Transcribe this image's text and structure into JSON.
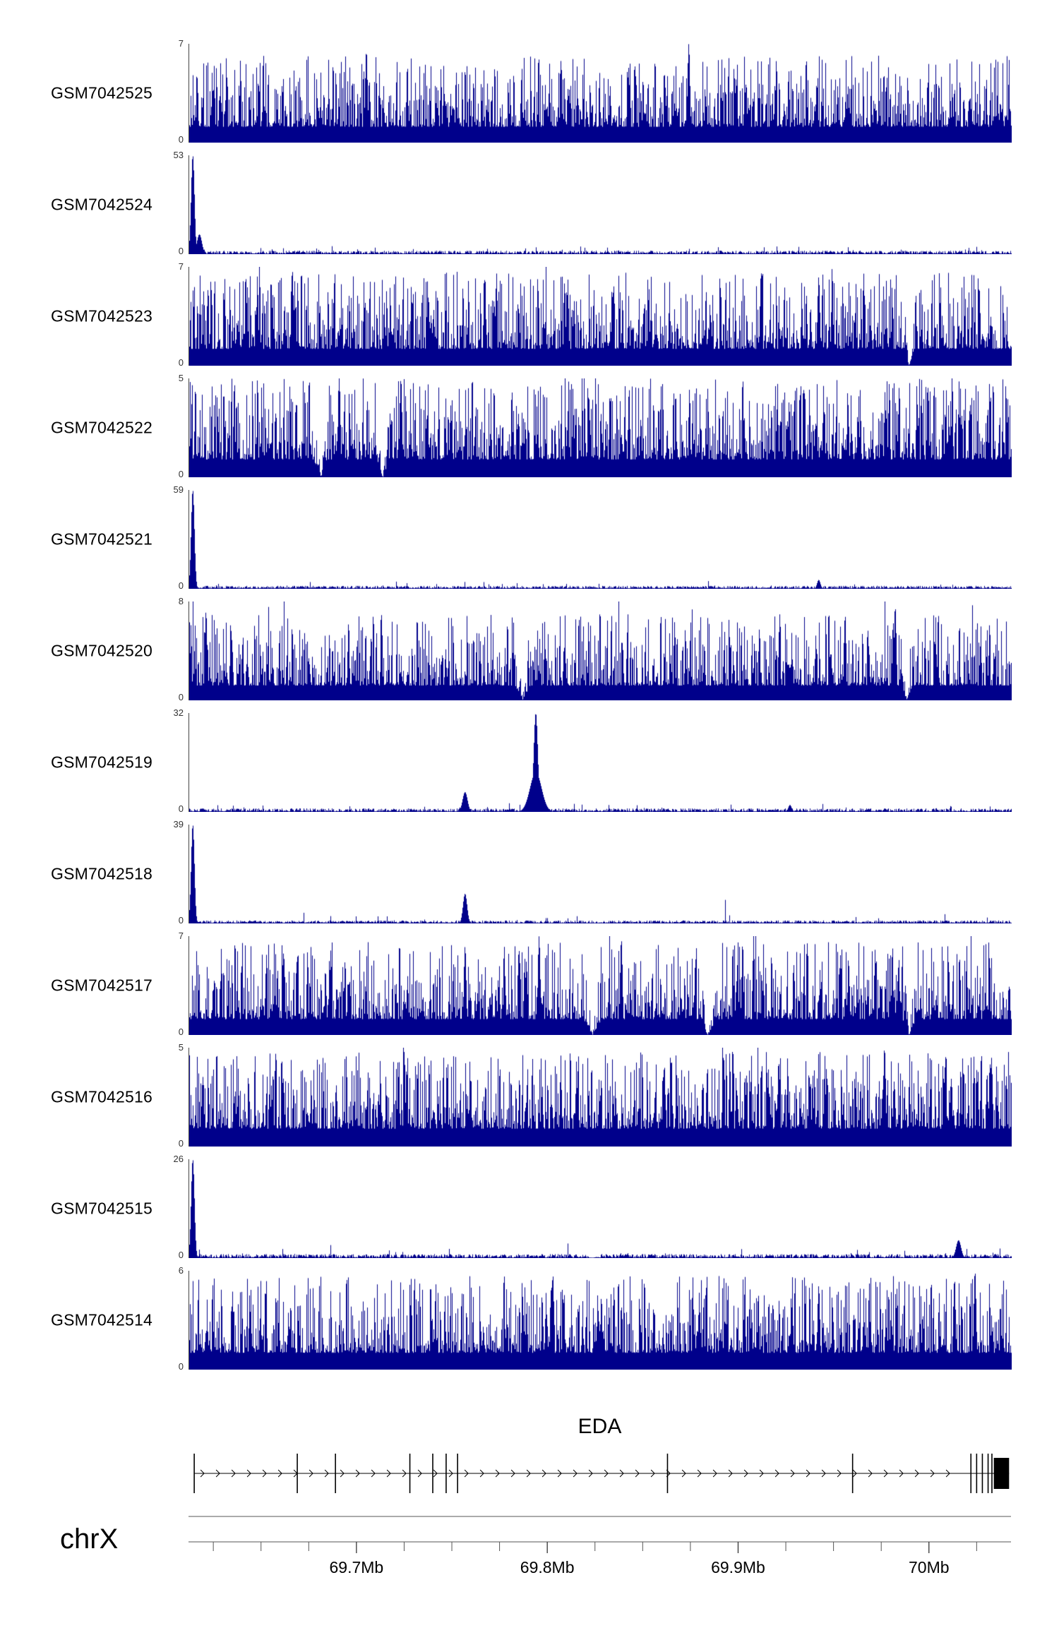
{
  "colors": {
    "signal": "#00008B",
    "axis_line": "#000000",
    "tick_label": "#000000",
    "y_label": "#333333"
  },
  "chart_data": {
    "type": "area",
    "title": "",
    "chromosome": "chrX",
    "x_range_mb": [
      69.612,
      70.043
    ],
    "x_ticks": [
      {
        "mb": 69.7,
        "label": "69.7Mb"
      },
      {
        "mb": 69.8,
        "label": "69.8Mb"
      },
      {
        "mb": 69.9,
        "label": "69.9Mb"
      },
      {
        "mb": 70.0,
        "label": "70Mb"
      }
    ],
    "x_minor_tick_step_mb": 0.025,
    "y_zero_label": "0",
    "gene": {
      "name": "EDA",
      "start_mb": 69.615,
      "end_mb": 70.042,
      "strand": "+",
      "exons_mb": [
        69.615,
        69.669,
        69.689,
        69.728,
        69.74,
        69.747,
        69.753,
        69.863,
        69.96,
        70.022,
        70.025,
        70.028,
        70.031,
        70.033
      ],
      "thick_exon": {
        "start_mb": 70.034,
        "end_mb": 70.042
      }
    },
    "tracks": [
      {
        "label": "GSM7042525",
        "ymax": 7,
        "ymin": 0,
        "profile": "dense",
        "seed": 11,
        "base": 0.16,
        "amp": 0.72,
        "pow": 2.6,
        "peaks": [
          {
            "pos": 0.215,
            "h": 0.93
          },
          {
            "pos": 0.607,
            "h": 1.0
          }
        ],
        "gaps": []
      },
      {
        "label": "GSM7042524",
        "ymax": 53,
        "ymin": 0,
        "profile": "sparse",
        "seed": 12,
        "noise": 0.035,
        "peaks": [
          {
            "pos": 0.004,
            "h": 1.0,
            "w": 0.002
          },
          {
            "pos": 0.012,
            "h": 0.2,
            "w": 0.003
          }
        ],
        "gaps": []
      },
      {
        "label": "GSM7042523",
        "ymax": 7,
        "ymin": 0,
        "profile": "dense",
        "seed": 13,
        "base": 0.17,
        "amp": 0.78,
        "pow": 2.4,
        "peaks": [
          {
            "pos": 0.125,
            "h": 0.97
          },
          {
            "pos": 0.695,
            "h": 0.95
          },
          {
            "pos": 0.765,
            "h": 0.9
          }
        ],
        "gaps": [
          {
            "pos": 0.875,
            "w": 0.006
          }
        ]
      },
      {
        "label": "GSM7042522",
        "ymax": 5,
        "ymin": 0,
        "profile": "dense",
        "seed": 14,
        "base": 0.18,
        "amp": 0.82,
        "pow": 2.2,
        "peaks": [
          {
            "pos": 0.182,
            "h": 1.0
          },
          {
            "pos": 0.257,
            "h": 1.0
          }
        ],
        "gaps": [
          {
            "pos": 0.16,
            "w": 0.009
          },
          {
            "pos": 0.235,
            "w": 0.008
          }
        ]
      },
      {
        "label": "GSM7042521",
        "ymax": 59,
        "ymin": 0,
        "profile": "sparse",
        "seed": 15,
        "noise": 0.03,
        "peaks": [
          {
            "pos": 0.004,
            "h": 1.0,
            "w": 0.002
          },
          {
            "pos": 0.765,
            "h": 0.09,
            "w": 0.002
          }
        ],
        "gaps": []
      },
      {
        "label": "GSM7042520",
        "ymax": 8,
        "ymin": 0,
        "profile": "dense",
        "seed": 16,
        "base": 0.15,
        "amp": 0.72,
        "pow": 2.6,
        "peaks": [
          {
            "pos": 0.858,
            "h": 0.95
          },
          {
            "pos": 0.02,
            "h": 0.9
          }
        ],
        "gaps": [
          {
            "pos": 0.405,
            "w": 0.009
          },
          {
            "pos": 0.872,
            "w": 0.007
          }
        ]
      },
      {
        "label": "GSM7042519",
        "ymax": 32,
        "ymin": 0,
        "profile": "sparse",
        "seed": 17,
        "noise": 0.035,
        "peaks": [
          {
            "pos": 0.421,
            "h": 1.0,
            "w": 0.0025
          },
          {
            "pos": 0.421,
            "h": 0.4,
            "w": 0.007
          },
          {
            "pos": 0.335,
            "h": 0.2,
            "w": 0.003
          },
          {
            "pos": 0.73,
            "h": 0.07,
            "w": 0.002
          }
        ],
        "gaps": []
      },
      {
        "label": "GSM7042518",
        "ymax": 39,
        "ymin": 0,
        "profile": "sparse",
        "seed": 18,
        "noise": 0.03,
        "peaks": [
          {
            "pos": 0.004,
            "h": 1.0,
            "w": 0.002
          },
          {
            "pos": 0.335,
            "h": 0.3,
            "w": 0.0025
          }
        ],
        "gaps": []
      },
      {
        "label": "GSM7042517",
        "ymax": 7,
        "ymin": 0,
        "profile": "dense",
        "seed": 19,
        "base": 0.16,
        "amp": 0.78,
        "pow": 2.4,
        "peaks": [
          {
            "pos": 0.425,
            "h": 1.0
          },
          {
            "pos": 0.525,
            "h": 0.97
          },
          {
            "pos": 0.335,
            "h": 0.9
          }
        ],
        "gaps": [
          {
            "pos": 0.49,
            "w": 0.011
          },
          {
            "pos": 0.63,
            "w": 0.011
          },
          {
            "pos": 0.875,
            "w": 0.008
          }
        ]
      },
      {
        "label": "GSM7042516",
        "ymax": 5,
        "ymin": 0,
        "profile": "dense",
        "seed": 20,
        "base": 0.18,
        "amp": 0.78,
        "pow": 2.2,
        "peaks": [
          {
            "pos": 0.845,
            "h": 1.0
          },
          {
            "pos": 0.975,
            "h": 0.9
          }
        ],
        "gaps": []
      },
      {
        "label": "GSM7042515",
        "ymax": 26,
        "ymin": 0,
        "profile": "sparse",
        "seed": 21,
        "noise": 0.04,
        "peaks": [
          {
            "pos": 0.004,
            "h": 1.0,
            "w": 0.002
          },
          {
            "pos": 0.935,
            "h": 0.18,
            "w": 0.003
          }
        ],
        "gaps": [
          {
            "pos": 0.49,
            "w": 0.01
          }
        ]
      },
      {
        "label": "GSM7042514",
        "ymax": 6,
        "ymin": 0,
        "profile": "dense",
        "seed": 22,
        "base": 0.17,
        "amp": 0.78,
        "pow": 2.4,
        "peaks": [
          {
            "pos": 0.44,
            "h": 0.85
          },
          {
            "pos": 0.93,
            "h": 0.9
          },
          {
            "pos": 0.955,
            "h": 1.0
          },
          {
            "pos": 0.765,
            "h": 0.85
          }
        ],
        "gaps": []
      }
    ]
  }
}
